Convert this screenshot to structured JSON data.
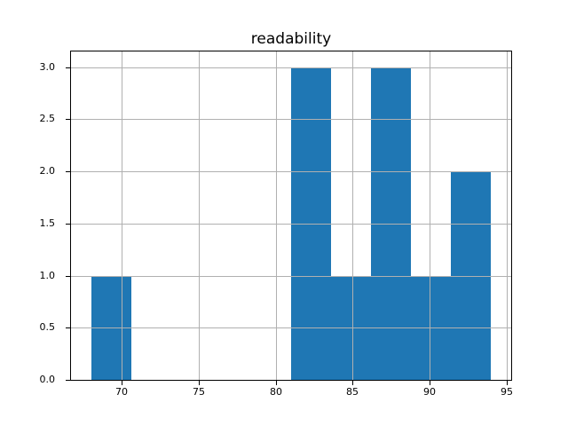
{
  "figure": {
    "background": "#ffffff"
  },
  "chart_data": {
    "type": "bar",
    "subtype": "histogram",
    "title": "readability",
    "bin_edges": [
      68.0,
      70.6,
      73.2,
      75.8,
      78.4,
      81.0,
      83.6,
      86.2,
      88.8,
      91.4,
      94.0
    ],
    "counts": [
      1,
      0,
      0,
      0,
      0,
      3,
      1,
      3,
      1,
      2
    ],
    "xlim": [
      66.7,
      95.3
    ],
    "ylim": [
      0,
      3.15
    ],
    "xticks": [
      {
        "value": 70,
        "label": "70"
      },
      {
        "value": 75,
        "label": "75"
      },
      {
        "value": 80,
        "label": "80"
      },
      {
        "value": 85,
        "label": "85"
      },
      {
        "value": 90,
        "label": "90"
      },
      {
        "value": 95,
        "label": "95"
      }
    ],
    "yticks": [
      {
        "value": 0.0,
        "label": "0.0"
      },
      {
        "value": 0.5,
        "label": "0.5"
      },
      {
        "value": 1.0,
        "label": "1.0"
      },
      {
        "value": 1.5,
        "label": "1.5"
      },
      {
        "value": 2.0,
        "label": "2.0"
      },
      {
        "value": 2.5,
        "label": "2.5"
      },
      {
        "value": 3.0,
        "label": "3.0"
      }
    ],
    "xlabel": "",
    "ylabel": "",
    "grid": true,
    "legend_position": "none",
    "bar_color": "#1f77b4",
    "grid_color": "#b0b0b0",
    "axis_color": "#000000",
    "text_color": "#000000"
  }
}
